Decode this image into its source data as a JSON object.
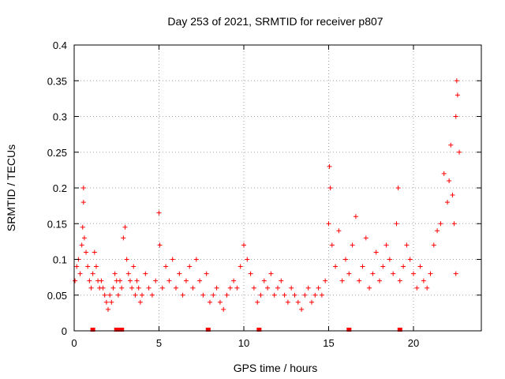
{
  "chart_data": {
    "type": "scatter",
    "title": "Day 253 of 2021, SRMTID for receiver p807",
    "xlabel": "GPS time / hours",
    "ylabel": "SRMTID / TECUs",
    "xlim": [
      0,
      24
    ],
    "ylim": [
      0,
      0.4
    ],
    "grid": true,
    "marker": "+",
    "marker_color": "#ff0000",
    "x_ticks": [
      {
        "value": 0,
        "label": "0"
      },
      {
        "value": 5,
        "label": "5"
      },
      {
        "value": 10,
        "label": "10"
      },
      {
        "value": 15,
        "label": "15"
      },
      {
        "value": 20,
        "label": "20"
      }
    ],
    "y_ticks": [
      {
        "value": 0,
        "label": "0"
      },
      {
        "value": 0.05,
        "label": "0.05"
      },
      {
        "value": 0.1,
        "label": "0.1"
      },
      {
        "value": 0.15,
        "label": "0.15"
      },
      {
        "value": 0.2,
        "label": "0.2"
      },
      {
        "value": 0.25,
        "label": "0.25"
      },
      {
        "value": 0.3,
        "label": "0.3"
      },
      {
        "value": 0.35,
        "label": "0.35"
      },
      {
        "value": 0.4,
        "label": "0.4"
      }
    ],
    "series": [
      {
        "name": "SRMTID",
        "points": [
          [
            0.05,
            0.07
          ],
          [
            0.15,
            0.09
          ],
          [
            0.25,
            0.1
          ],
          [
            0.35,
            0.08
          ],
          [
            0.45,
            0.12
          ],
          [
            0.5,
            0.145
          ],
          [
            0.55,
            0.2
          ],
          [
            0.55,
            0.18
          ],
          [
            0.6,
            0.13
          ],
          [
            0.7,
            0.11
          ],
          [
            0.8,
            0.09
          ],
          [
            0.9,
            0.07
          ],
          [
            1.0,
            0.06
          ],
          [
            1.1,
            0.08
          ],
          [
            1.2,
            0.11
          ],
          [
            1.3,
            0.09
          ],
          [
            1.4,
            0.07
          ],
          [
            1.5,
            0.06
          ],
          [
            1.6,
            0.07
          ],
          [
            1.7,
            0.06
          ],
          [
            1.8,
            0.05
          ],
          [
            1.9,
            0.04
          ],
          [
            2.0,
            0.03
          ],
          [
            2.1,
            0.05
          ],
          [
            2.2,
            0.04
          ],
          [
            2.3,
            0.06
          ],
          [
            2.4,
            0.08
          ],
          [
            2.5,
            0.07
          ],
          [
            2.6,
            0.05
          ],
          [
            2.7,
            0.07
          ],
          [
            2.8,
            0.06
          ],
          [
            2.9,
            0.13
          ],
          [
            3.0,
            0.145
          ],
          [
            3.1,
            0.1
          ],
          [
            3.2,
            0.08
          ],
          [
            3.3,
            0.07
          ],
          [
            3.4,
            0.06
          ],
          [
            3.5,
            0.09
          ],
          [
            3.6,
            0.05
          ],
          [
            3.7,
            0.07
          ],
          [
            3.8,
            0.06
          ],
          [
            3.9,
            0.04
          ],
          [
            4.0,
            0.05
          ],
          [
            4.2,
            0.08
          ],
          [
            4.4,
            0.06
          ],
          [
            4.6,
            0.05
          ],
          [
            4.8,
            0.07
          ],
          [
            5.0,
            0.165
          ],
          [
            5.05,
            0.12
          ],
          [
            5.2,
            0.06
          ],
          [
            5.4,
            0.09
          ],
          [
            5.6,
            0.07
          ],
          [
            5.8,
            0.1
          ],
          [
            6.0,
            0.06
          ],
          [
            6.2,
            0.08
          ],
          [
            6.4,
            0.05
          ],
          [
            6.6,
            0.07
          ],
          [
            6.8,
            0.09
          ],
          [
            7.0,
            0.06
          ],
          [
            7.2,
            0.1
          ],
          [
            7.4,
            0.07
          ],
          [
            7.6,
            0.05
          ],
          [
            7.8,
            0.08
          ],
          [
            8.0,
            0.04
          ],
          [
            8.2,
            0.05
          ],
          [
            8.4,
            0.06
          ],
          [
            8.6,
            0.04
          ],
          [
            8.8,
            0.03
          ],
          [
            9.0,
            0.05
          ],
          [
            9.2,
            0.06
          ],
          [
            9.4,
            0.07
          ],
          [
            9.6,
            0.06
          ],
          [
            9.8,
            0.09
          ],
          [
            10.0,
            0.12
          ],
          [
            10.2,
            0.1
          ],
          [
            10.4,
            0.08
          ],
          [
            10.6,
            0.06
          ],
          [
            10.8,
            0.04
          ],
          [
            11.0,
            0.05
          ],
          [
            11.2,
            0.07
          ],
          [
            11.4,
            0.06
          ],
          [
            11.6,
            0.08
          ],
          [
            11.8,
            0.05
          ],
          [
            12.0,
            0.06
          ],
          [
            12.2,
            0.07
          ],
          [
            12.4,
            0.05
          ],
          [
            12.6,
            0.04
          ],
          [
            12.8,
            0.06
          ],
          [
            13.0,
            0.05
          ],
          [
            13.2,
            0.04
          ],
          [
            13.4,
            0.03
          ],
          [
            13.6,
            0.05
          ],
          [
            13.8,
            0.06
          ],
          [
            14.0,
            0.04
          ],
          [
            14.2,
            0.05
          ],
          [
            14.4,
            0.06
          ],
          [
            14.6,
            0.05
          ],
          [
            14.8,
            0.07
          ],
          [
            15.0,
            0.15
          ],
          [
            15.05,
            0.23
          ],
          [
            15.1,
            0.2
          ],
          [
            15.2,
            0.12
          ],
          [
            15.4,
            0.09
          ],
          [
            15.6,
            0.14
          ],
          [
            15.8,
            0.07
          ],
          [
            16.0,
            0.1
          ],
          [
            16.2,
            0.08
          ],
          [
            16.4,
            0.12
          ],
          [
            16.6,
            0.16
          ],
          [
            16.8,
            0.07
          ],
          [
            17.0,
            0.09
          ],
          [
            17.2,
            0.13
          ],
          [
            17.4,
            0.06
          ],
          [
            17.6,
            0.08
          ],
          [
            17.8,
            0.11
          ],
          [
            18.0,
            0.07
          ],
          [
            18.2,
            0.09
          ],
          [
            18.4,
            0.12
          ],
          [
            18.6,
            0.1
          ],
          [
            18.8,
            0.08
          ],
          [
            19.0,
            0.15
          ],
          [
            19.1,
            0.2
          ],
          [
            19.2,
            0.07
          ],
          [
            19.4,
            0.09
          ],
          [
            19.6,
            0.12
          ],
          [
            19.8,
            0.1
          ],
          [
            20.0,
            0.08
          ],
          [
            20.2,
            0.06
          ],
          [
            20.4,
            0.09
          ],
          [
            20.6,
            0.07
          ],
          [
            20.8,
            0.06
          ],
          [
            21.0,
            0.08
          ],
          [
            21.2,
            0.12
          ],
          [
            21.4,
            0.14
          ],
          [
            21.6,
            0.15
          ],
          [
            21.8,
            0.22
          ],
          [
            22.0,
            0.18
          ],
          [
            22.1,
            0.21
          ],
          [
            22.2,
            0.26
          ],
          [
            22.3,
            0.19
          ],
          [
            22.4,
            0.15
          ],
          [
            22.5,
            0.3
          ],
          [
            22.55,
            0.35
          ],
          [
            22.6,
            0.33
          ],
          [
            22.7,
            0.25
          ],
          [
            22.5,
            0.08
          ]
        ]
      }
    ],
    "gap_markers_x": [
      1.1,
      2.5,
      2.7,
      2.8,
      7.9,
      10.9,
      16.2,
      19.2
    ]
  }
}
